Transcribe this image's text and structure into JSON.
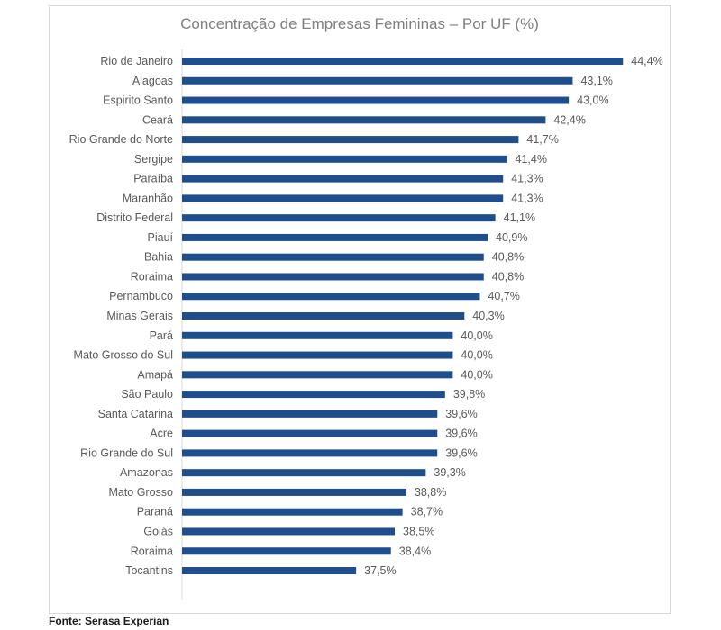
{
  "chart_data": {
    "type": "bar",
    "orientation": "horizontal",
    "title": "Concentração de Empresas Femininas – Por UF (%)",
    "categories": [
      "Rio de Janeiro",
      "Alagoas",
      "Espirito Santo",
      "Ceará",
      "Rio Grande do Norte",
      "Sergipe",
      "Paraíba",
      "Maranhão",
      "Distrito Federal",
      "Piauí",
      "Bahia",
      "Roraima",
      "Pernambuco",
      "Minas Gerais",
      "Pará",
      "Mato Grosso do Sul",
      "Amapá",
      "São Paulo",
      "Santa Catarina",
      "Acre",
      "Rio Grande do Sul",
      "Amazonas",
      "Mato Grosso",
      "Paraná",
      "Goiás",
      "Roraima",
      "Tocantins"
    ],
    "values": [
      44.4,
      43.1,
      43.0,
      42.4,
      41.7,
      41.4,
      41.3,
      41.3,
      41.1,
      40.9,
      40.8,
      40.8,
      40.7,
      40.3,
      40.0,
      40.0,
      40.0,
      39.8,
      39.6,
      39.6,
      39.6,
      39.3,
      38.8,
      38.7,
      38.5,
      38.4,
      37.5
    ],
    "value_labels": [
      "44,4%",
      "43,1%",
      "43,0%",
      "42,4%",
      "41,7%",
      "41,4%",
      "41,3%",
      "41,3%",
      "41,1%",
      "40,9%",
      "40,8%",
      "40,8%",
      "40,7%",
      "40,3%",
      "40,0%",
      "40,0%",
      "40,0%",
      "39,8%",
      "39,6%",
      "39,6%",
      "39,6%",
      "39,3%",
      "38,8%",
      "38,7%",
      "38,5%",
      "38,4%",
      "37,5%"
    ],
    "xlim": [
      33,
      45
    ],
    "bar_color": "#1f4e8c",
    "grid": false,
    "legend": "none"
  },
  "source": "Fonte: Serasa Experian"
}
